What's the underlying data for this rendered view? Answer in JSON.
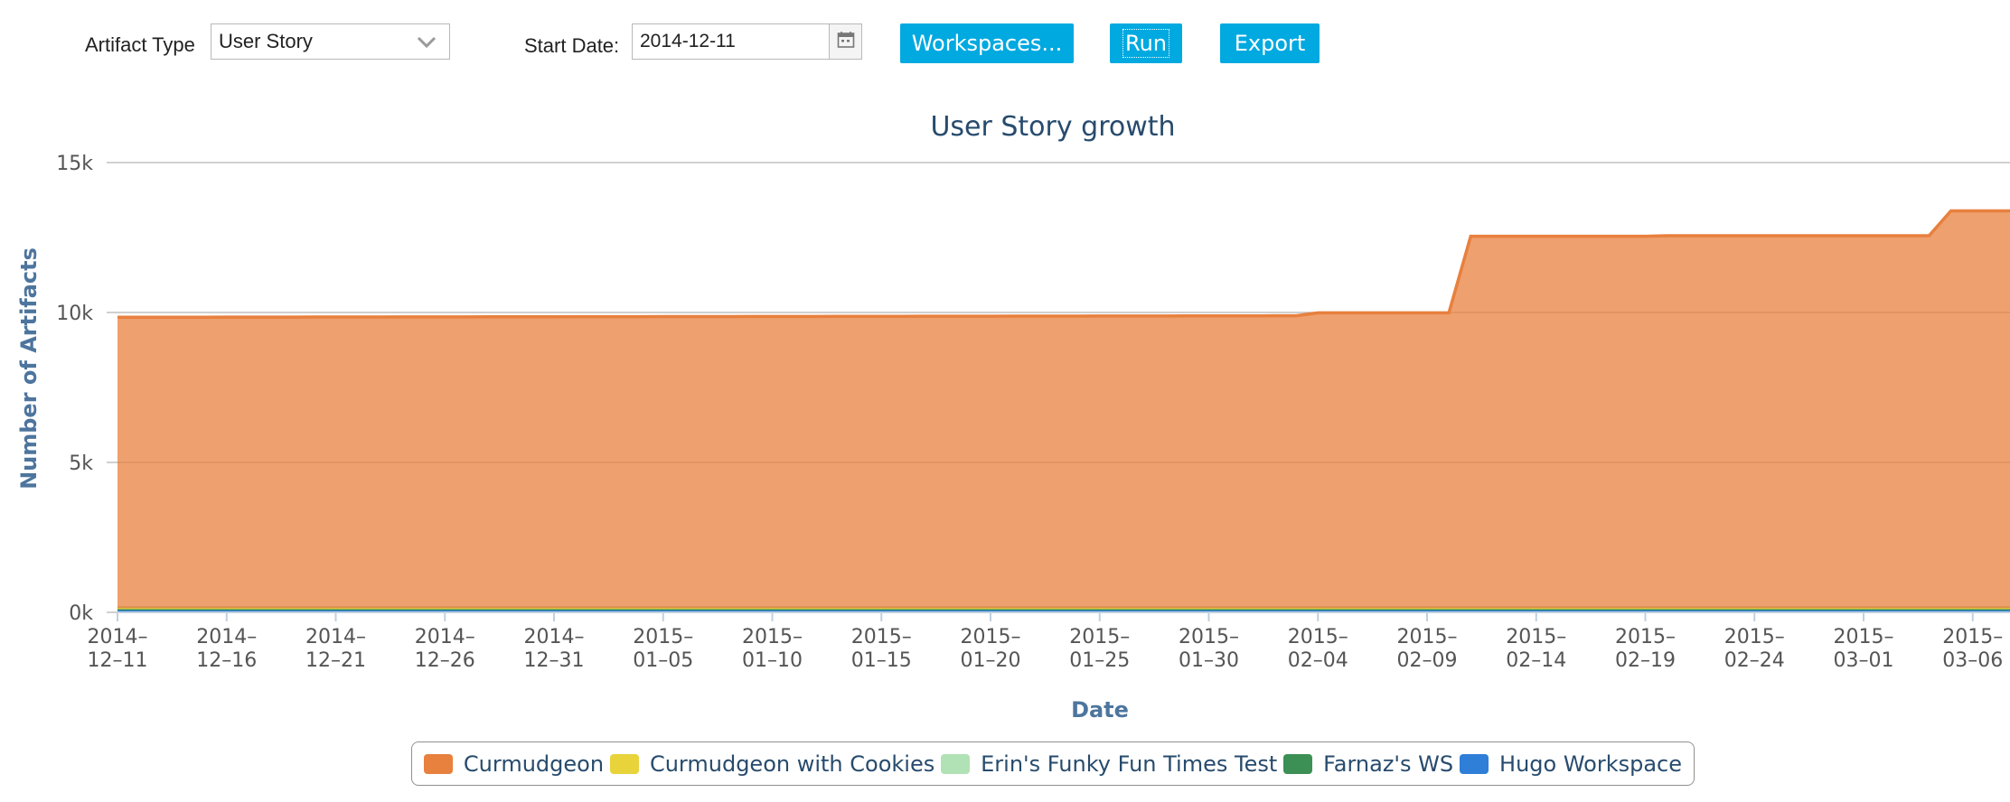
{
  "toolbar": {
    "artifact_type_label": "Artifact Type",
    "artifact_type_value": "User Story",
    "start_date_label": "Start Date:",
    "start_date_value": "2014-12-11",
    "workspaces_label": "Workspaces...",
    "run_label": "Run",
    "export_label": "Export",
    "accent_color": "#00a9e0"
  },
  "chart_data": {
    "type": "area",
    "title": "User Story growth",
    "xlabel": "Date",
    "ylabel": "Number of Artifacts",
    "ylim": [
      0,
      15000
    ],
    "yticks": [
      0,
      5000,
      10000,
      15000
    ],
    "ytick_labels": [
      "0k",
      "5k",
      "10k",
      "15k"
    ],
    "xlim": [
      "2014-12-11",
      "2015-03-09"
    ],
    "xticks": [
      "2014-12-11",
      "2014-12-16",
      "2014-12-21",
      "2014-12-26",
      "2014-12-31",
      "2015-01-05",
      "2015-01-10",
      "2015-01-15",
      "2015-01-20",
      "2015-01-25",
      "2015-01-30",
      "2015-02-04",
      "2015-02-09",
      "2015-02-14",
      "2015-02-19",
      "2015-02-24",
      "2015-03-01",
      "2015-03-06"
    ],
    "grid": true,
    "legend_position": "bottom-center",
    "stacked": true,
    "series": [
      {
        "name": "Curmudgeon",
        "color": "#e8803e",
        "points": [
          [
            "2014-12-11",
            9700
          ],
          [
            "2015-02-03",
            9750
          ],
          [
            "2015-02-04",
            9850
          ],
          [
            "2015-02-10",
            9850
          ],
          [
            "2015-02-11",
            12400
          ],
          [
            "2015-02-19",
            12400
          ],
          [
            "2015-02-20",
            12420
          ],
          [
            "2015-03-04",
            12420
          ],
          [
            "2015-03-05",
            13250
          ],
          [
            "2015-03-09",
            13250
          ]
        ]
      },
      {
        "name": "Curmudgeon with Cookies",
        "color": "#e8d33a",
        "points": [
          [
            "2014-12-11",
            0
          ],
          [
            "2015-03-09",
            0
          ]
        ]
      },
      {
        "name": "Erin's Funky Fun Times Test",
        "color": "#b1e2b5",
        "points": [
          [
            "2014-12-11",
            0
          ],
          [
            "2015-03-09",
            0
          ]
        ]
      },
      {
        "name": "Farnaz's WS",
        "color": "#3c8f55",
        "points": [
          [
            "2014-12-11",
            80
          ],
          [
            "2015-03-09",
            80
          ]
        ]
      },
      {
        "name": "Hugo Workspace",
        "color": "#2f7ed8",
        "points": [
          [
            "2014-12-11",
            60
          ],
          [
            "2015-03-09",
            60
          ]
        ]
      }
    ]
  }
}
